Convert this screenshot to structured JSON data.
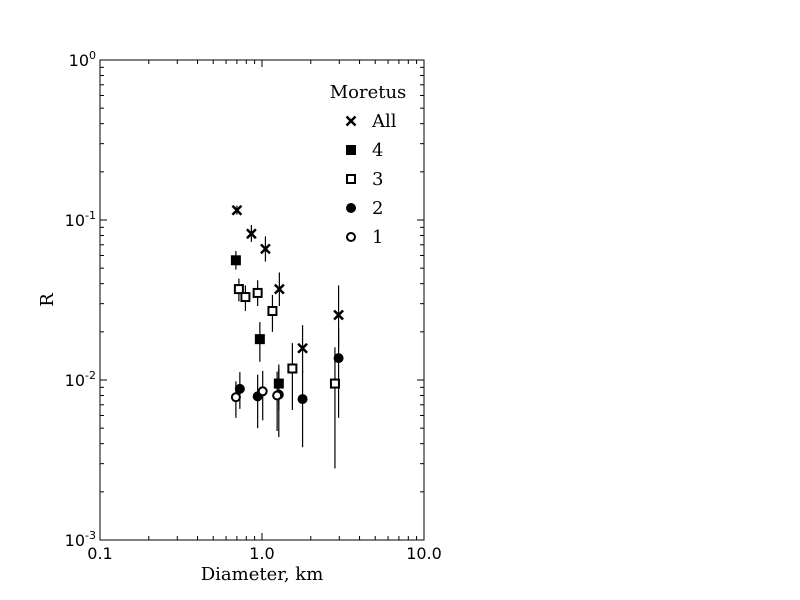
{
  "chart_data": {
    "type": "scatter",
    "xscale": "log",
    "yscale": "log",
    "xlim": [
      0.1,
      10.0
    ],
    "ylim": [
      0.001,
      1
    ],
    "xlabel": "Diameter, km",
    "ylabel": "R",
    "x_ticks": [
      "0.1",
      "1.0",
      "10.0"
    ],
    "y_ticks": [
      {
        "base": "10",
        "exp": "-3"
      },
      {
        "base": "10",
        "exp": "-2"
      },
      {
        "base": "10",
        "exp": "-1"
      },
      {
        "base": "10",
        "exp": "0"
      }
    ],
    "grid": false,
    "legend": {
      "title": "Moretus",
      "position": "top-right"
    },
    "series": [
      {
        "name": "All",
        "marker": "x",
        "points": [
          {
            "x": 0.7,
            "y": 0.115,
            "lo": 0.108,
            "hi": 0.123
          },
          {
            "x": 0.86,
            "y": 0.082,
            "lo": 0.073,
            "hi": 0.093
          },
          {
            "x": 1.05,
            "y": 0.066,
            "lo": 0.055,
            "hi": 0.079
          },
          {
            "x": 1.28,
            "y": 0.037,
            "lo": 0.029,
            "hi": 0.047
          },
          {
            "x": 1.78,
            "y": 0.0158,
            "lo": 0.011,
            "hi": 0.022
          },
          {
            "x": 2.97,
            "y": 0.0255,
            "lo": 0.016,
            "hi": 0.039
          }
        ]
      },
      {
        "name": "4",
        "marker": "filled-square",
        "points": [
          {
            "x": 0.69,
            "y": 0.056,
            "lo": 0.049,
            "hi": 0.064
          },
          {
            "x": 0.97,
            "y": 0.018,
            "lo": 0.013,
            "hi": 0.023
          },
          {
            "x": 1.27,
            "y": 0.0095,
            "lo": 0.0065,
            "hi": 0.0125
          }
        ]
      },
      {
        "name": "3",
        "marker": "open-square",
        "points": [
          {
            "x": 0.72,
            "y": 0.037,
            "lo": 0.031,
            "hi": 0.043
          },
          {
            "x": 0.79,
            "y": 0.033,
            "lo": 0.027,
            "hi": 0.039
          },
          {
            "x": 0.94,
            "y": 0.035,
            "lo": 0.029,
            "hi": 0.042
          },
          {
            "x": 1.16,
            "y": 0.027,
            "lo": 0.02,
            "hi": 0.034
          },
          {
            "x": 1.54,
            "y": 0.0118,
            "lo": 0.0065,
            "hi": 0.017
          },
          {
            "x": 2.82,
            "y": 0.0095,
            "lo": 0.0028,
            "hi": 0.016
          }
        ]
      },
      {
        "name": "2",
        "marker": "filled-circle",
        "points": [
          {
            "x": 0.73,
            "y": 0.0088,
            "lo": 0.0066,
            "hi": 0.0112
          },
          {
            "x": 0.94,
            "y": 0.0079,
            "lo": 0.005,
            "hi": 0.0108
          },
          {
            "x": 1.27,
            "y": 0.0081,
            "lo": 0.0044,
            "hi": 0.0118
          },
          {
            "x": 1.78,
            "y": 0.0076,
            "lo": 0.0038,
            "hi": 0.0115
          },
          {
            "x": 2.97,
            "y": 0.0137,
            "lo": 0.0058,
            "hi": 0.021
          }
        ]
      },
      {
        "name": "1",
        "marker": "open-circle",
        "points": [
          {
            "x": 0.69,
            "y": 0.0078,
            "lo": 0.0058,
            "hi": 0.0098
          },
          {
            "x": 1.01,
            "y": 0.0085,
            "lo": 0.0056,
            "hi": 0.0114
          },
          {
            "x": 1.24,
            "y": 0.008,
            "lo": 0.0048,
            "hi": 0.0113
          }
        ]
      }
    ]
  }
}
